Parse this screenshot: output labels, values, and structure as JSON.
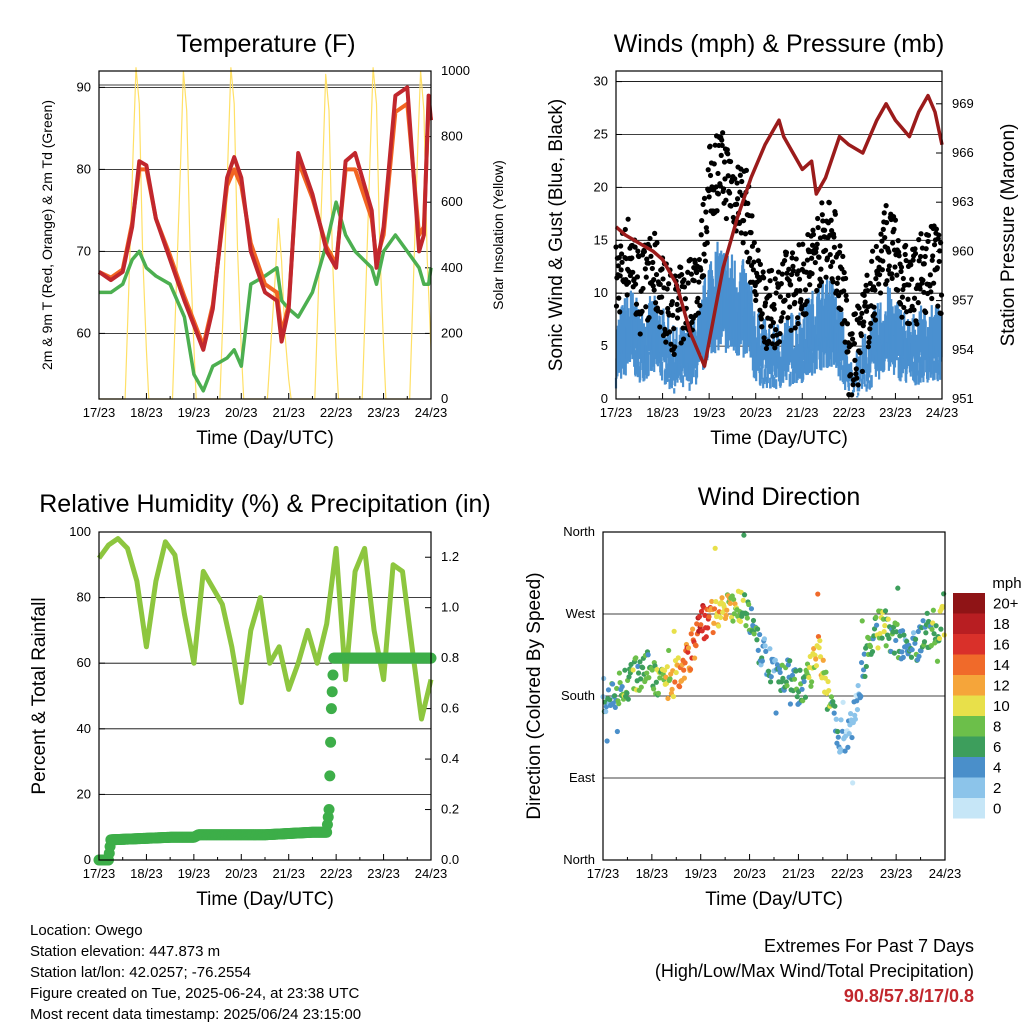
{
  "x_tick_labels": [
    "17/23",
    "18/23",
    "19/23",
    "20/23",
    "21/23",
    "22/23",
    "23/23",
    "24/23"
  ],
  "x_axis_label": "Time (Day/UTC)",
  "chart_data": [
    {
      "type": "line",
      "title": "Temperature (F)",
      "ylabel": "2m & 9m T (Red, Orange) & 2m Td (Green)",
      "y2label": "Solar Insolation (Yellow)",
      "ylim": [
        52,
        92
      ],
      "y2lim": [
        0,
        1000
      ],
      "yticks": [
        60,
        70,
        80,
        90
      ],
      "y2ticks": [
        0,
        200,
        400,
        600,
        800,
        1000
      ],
      "x": [
        0,
        0.25,
        0.5,
        0.7,
        0.85,
        1.0,
        1.2,
        1.5,
        1.8,
        2.0,
        2.2,
        2.4,
        2.7,
        2.85,
        3.0,
        3.2,
        3.5,
        3.75,
        3.85,
        4.0,
        4.2,
        4.5,
        4.8,
        5.0,
        5.2,
        5.4,
        5.75,
        5.85,
        6.0,
        6.25,
        6.5,
        6.75,
        6.85,
        6.95,
        7.0
      ],
      "series": [
        {
          "name": "2m T",
          "color": "#c1272d",
          "values": [
            67.5,
            66.5,
            67.5,
            73,
            81,
            80.5,
            74,
            69,
            64,
            61,
            58,
            63,
            79,
            81.5,
            79,
            70,
            65,
            64,
            59,
            63,
            82,
            77,
            70,
            68,
            81,
            82,
            75,
            68,
            73,
            89,
            90,
            70,
            72,
            89,
            86
          ]
        },
        {
          "name": "9m T",
          "color": "#f26522",
          "values": [
            67.5,
            66.8,
            67.8,
            73.5,
            80,
            80,
            74,
            69.5,
            64.5,
            61.5,
            58.5,
            63.5,
            78,
            80,
            78,
            71,
            66,
            65,
            60,
            63.5,
            81,
            76.5,
            70.5,
            68.5,
            80,
            80,
            74,
            69,
            72,
            87,
            88,
            72,
            73,
            88,
            86
          ]
        },
        {
          "name": "2m Td",
          "color": "#4caf50",
          "values": [
            65,
            65,
            66,
            69,
            70,
            68,
            67,
            66,
            62,
            55,
            53,
            56,
            57,
            58,
            56,
            66,
            67,
            68,
            64,
            63,
            62,
            65,
            71,
            76,
            72,
            70,
            68,
            66,
            70,
            72,
            70,
            68,
            66,
            66,
            68
          ]
        },
        {
          "name": "Solar Insolation",
          "color": "#ffe066",
          "axis": "right",
          "x": [
            0,
            0.55,
            0.62,
            0.72,
            0.78,
            0.85,
            0.92,
            1.0,
            1.05,
            1.55,
            1.62,
            1.72,
            1.78,
            1.85,
            1.92,
            2.0,
            2.05,
            2.55,
            2.62,
            2.72,
            2.78,
            2.85,
            2.92,
            3.0,
            3.05,
            3.55,
            3.62,
            3.72,
            3.78,
            3.85,
            3.92,
            4.0,
            4.05,
            4.55,
            4.62,
            4.72,
            4.78,
            4.85,
            4.92,
            5.0,
            5.05,
            5.55,
            5.62,
            5.72,
            5.78,
            5.85,
            5.92,
            6.0,
            6.05,
            6.55,
            6.62,
            6.72,
            6.78,
            6.85,
            6.92,
            7.0
          ],
          "values": [
            0,
            0,
            300,
            750,
            1010,
            900,
            450,
            150,
            0,
            0,
            300,
            720,
            1000,
            880,
            450,
            160,
            0,
            0,
            280,
            740,
            1010,
            900,
            460,
            150,
            0,
            0,
            160,
            380,
            550,
            420,
            200,
            60,
            0,
            0,
            300,
            720,
            990,
            880,
            450,
            140,
            0,
            0,
            300,
            760,
            1010,
            900,
            460,
            160,
            0,
            0,
            320,
            760,
            1000,
            880,
            430,
            150
          ]
        }
      ]
    },
    {
      "type": "scatter",
      "title": "Winds (mph) & Pressure (mb)",
      "ylabel": "Sonic Wind & Gust (Blue, Black)",
      "y2label": "Station Pressure (Maroon)",
      "ylim": [
        0,
        31
      ],
      "y2lim": [
        951,
        971
      ],
      "yticks": [
        0,
        5,
        10,
        15,
        20,
        25,
        30
      ],
      "y2ticks": [
        951,
        954,
        957,
        960,
        963,
        966,
        969
      ],
      "wind_x": [
        0,
        0.3,
        0.5,
        0.8,
        1.0,
        1.2,
        1.5,
        1.8,
        2.0,
        2.2,
        2.5,
        2.8,
        3.0,
        3.3,
        3.6,
        4.0,
        4.3,
        4.6,
        4.9,
        5.0,
        5.2,
        5.5,
        5.8,
        6.0,
        6.3,
        6.6,
        6.9,
        7.0
      ],
      "series": [
        {
          "name": "Sonic Wind",
          "color": "#4a90d0",
          "values": [
            5,
            8,
            6,
            7,
            6,
            4,
            4,
            6,
            11,
            12,
            11,
            10,
            6,
            4,
            5,
            6,
            8,
            9,
            5,
            1,
            2,
            5,
            8,
            7,
            5,
            6,
            6,
            5
          ]
        },
        {
          "name": "Gust",
          "color": "#000000",
          "values": [
            11,
            14,
            10,
            12,
            10,
            8,
            9,
            12,
            20,
            22,
            20,
            18,
            11,
            8,
            10,
            11,
            14,
            16,
            10,
            3,
            5,
            10,
            15,
            13,
            10,
            12,
            13,
            10
          ]
        },
        {
          "name": "Station Pressure",
          "color": "#9b1b1b",
          "axis": "right",
          "x": [
            0,
            0.2,
            0.5,
            0.8,
            1.0,
            1.3,
            1.6,
            1.9,
            2.1,
            2.3,
            2.6,
            2.9,
            3.2,
            3.5,
            3.6,
            3.8,
            4.0,
            4.2,
            4.3,
            4.5,
            4.8,
            5.0,
            5.3,
            5.6,
            5.8,
            6.0,
            6.3,
            6.5,
            6.7,
            6.85,
            7.0
          ],
          "values": [
            961.5,
            961.0,
            960.5,
            960.0,
            959.5,
            958.0,
            955.0,
            953.0,
            956.0,
            959.0,
            962.0,
            964.5,
            966.5,
            968.0,
            967.0,
            966.0,
            965.0,
            965.5,
            963.5,
            964.5,
            967.0,
            966.5,
            966.0,
            968.0,
            969.0,
            968.0,
            967.0,
            968.5,
            969.5,
            968.5,
            966.5
          ]
        }
      ]
    },
    {
      "type": "line",
      "title": "Relative Humidity (%) & Precipitation (in)",
      "ylabel": "Percent & Total Rainfall",
      "ylim": [
        0,
        100
      ],
      "y2lim": [
        0,
        1.3
      ],
      "yticks": [
        0,
        20,
        40,
        60,
        80,
        100
      ],
      "y2ticks": [
        0.0,
        0.2,
        0.4,
        0.6,
        0.8,
        1.0,
        1.2
      ],
      "series": [
        {
          "name": "Relative Humidity",
          "color": "#8dc63f",
          "x": [
            0,
            0.2,
            0.4,
            0.6,
            0.8,
            1.0,
            1.2,
            1.4,
            1.6,
            1.8,
            2.0,
            2.2,
            2.4,
            2.6,
            2.8,
            3.0,
            3.2,
            3.4,
            3.6,
            3.8,
            4.0,
            4.2,
            4.4,
            4.6,
            4.8,
            5.0,
            5.2,
            5.4,
            5.6,
            5.8,
            6.0,
            6.2,
            6.4,
            6.6,
            6.8,
            7.0
          ],
          "values": [
            92,
            96,
            98,
            95,
            85,
            65,
            85,
            97,
            93,
            75,
            60,
            88,
            83,
            78,
            65,
            48,
            70,
            80,
            60,
            65,
            52,
            60,
            70,
            60,
            72,
            95,
            55,
            88,
            95,
            70,
            55,
            90,
            88,
            65,
            43,
            55
          ]
        },
        {
          "name": "Total Precipitation",
          "color": "#3dae49",
          "axis": "right",
          "x": [
            0,
            0.2,
            0.25,
            1.5,
            2.0,
            2.1,
            3.5,
            4.5,
            4.8,
            4.85,
            4.9,
            4.95,
            5.0,
            5.5,
            7.0
          ],
          "values": [
            0,
            0,
            0.08,
            0.09,
            0.09,
            0.1,
            0.1,
            0.11,
            0.11,
            0.2,
            0.6,
            0.8,
            0.8,
            0.8,
            0.8
          ]
        }
      ]
    },
    {
      "type": "scatter",
      "title": "Wind Direction",
      "ylabel": "Direction (Colored By Speed)",
      "ytick_labels": [
        "North",
        "East",
        "South",
        "West",
        "North"
      ],
      "legend_title": "mph",
      "legend_labels": [
        "0",
        "2",
        "4",
        "6",
        "8",
        "10",
        "12",
        "14",
        "16",
        "18",
        "20+"
      ],
      "legend_colors": [
        "#c6e6f7",
        "#8cc4ea",
        "#4a8fca",
        "#3d9e5c",
        "#6cbf4a",
        "#e8e04a",
        "#f5a53a",
        "#f06a2a",
        "#d9302a",
        "#b81e22",
        "#8f1416"
      ],
      "x": [
        0,
        0.3,
        0.6,
        0.9,
        1.2,
        1.5,
        1.8,
        2.0,
        2.3,
        2.6,
        2.9,
        3.2,
        3.5,
        3.8,
        4.1,
        4.4,
        4.7,
        4.9,
        5.1,
        5.4,
        5.7,
        6.0,
        6.3,
        6.6,
        6.9
      ],
      "direction_deg": [
        180,
        185,
        200,
        210,
        190,
        200,
        230,
        260,
        270,
        275,
        280,
        230,
        210,
        200,
        185,
        230,
        160,
        130,
        150,
        230,
        260,
        240,
        230,
        250,
        260
      ],
      "speed": [
        4,
        6,
        8,
        6,
        8,
        12,
        14,
        16,
        12,
        10,
        8,
        4,
        4,
        6,
        6,
        12,
        6,
        2,
        2,
        6,
        8,
        6,
        4,
        6,
        8
      ]
    }
  ],
  "info": {
    "location": "Location: Owego",
    "elevation": "Station elevation: 447.873 m",
    "latlon": "Station lat/lon: 42.0257; -76.2554",
    "created": "Figure created on Tue, 2025-06-24, at 23:38 UTC",
    "recent": "Most recent data timestamp: 2025/06/24 23:15:00"
  },
  "extremes": {
    "line1": "Extremes For Past 7 Days",
    "line2": "(High/Low/Max Wind/Total Precipitation)",
    "values": "90.8/57.8/17/0.8"
  }
}
